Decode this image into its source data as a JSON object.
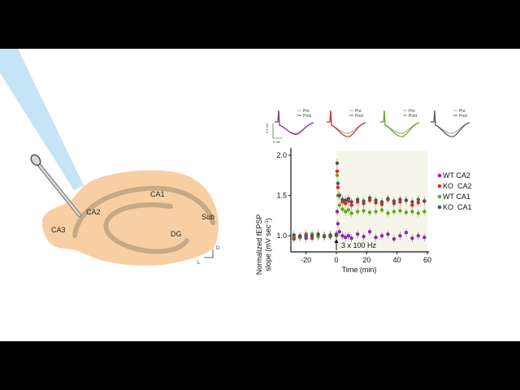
{
  "diagram": {
    "regions": [
      "CA1",
      "CA2",
      "CA3",
      "DG",
      "Sub"
    ],
    "orientation": {
      "dorsal": "D",
      "lateral": "L"
    }
  },
  "traces": {
    "legend_pre": "Pre",
    "legend_post": "Post",
    "scale_y": "0.5 mV",
    "scale_x": "5 ms",
    "panels": [
      {
        "color": "#8b2ba3"
      },
      {
        "color": "#e0261f"
      },
      {
        "color": "#5faa1e"
      },
      {
        "color": "#555555"
      }
    ]
  },
  "chart_data": {
    "type": "scatter",
    "ylabel_line1": "Normalized fEPSP",
    "ylabel_line2": "slope (mV sec",
    "ylabel_sup": "-1",
    "ylabel_close": ")",
    "xlabel": "Time (min)",
    "xlim": [
      -30,
      60
    ],
    "ylim": [
      0.8,
      2.05
    ],
    "x_ticks": [
      -20,
      0,
      20,
      40,
      60
    ],
    "x_tick_labels": [
      "-20",
      "0",
      "20",
      "40",
      "60"
    ],
    "y_ticks": [
      1.0,
      1.5,
      2.0
    ],
    "y_tick_labels": [
      "1.0",
      "1.5",
      "2.0"
    ],
    "annotation": "3 x 100 Hz",
    "annotation_x": 0,
    "shaded_region": [
      0,
      60
    ],
    "series": [
      {
        "name": "WT CA2",
        "color": "#8b2ba3",
        "x": [
          -28,
          -24,
          -20,
          -16,
          -12,
          -8,
          -4,
          0,
          0.5,
          1,
          2,
          4,
          6,
          8,
          10,
          14,
          18,
          22,
          26,
          30,
          34,
          38,
          42,
          46,
          50,
          54,
          58
        ],
        "y": [
          0.96,
          0.98,
          0.97,
          1.0,
          0.99,
          1.0,
          1.01,
          1.02,
          1.3,
          1.15,
          1.05,
          1.0,
          0.98,
          1.0,
          0.97,
          1.02,
          0.99,
          1.05,
          0.98,
          1.0,
          1.02,
          0.96,
          1.0,
          1.04,
          0.97,
          1.0,
          0.98
        ]
      },
      {
        "name": "KO  CA2",
        "color": "#e0261f",
        "x": [
          -28,
          -24,
          -20,
          -16,
          -12,
          -8,
          -4,
          0,
          0.5,
          1,
          2,
          4,
          6,
          8,
          10,
          14,
          18,
          22,
          26,
          30,
          34,
          38,
          42,
          46,
          50,
          54,
          58
        ],
        "y": [
          0.98,
          1.0,
          1.02,
          0.97,
          1.01,
          1.0,
          0.99,
          1.01,
          1.8,
          1.6,
          1.5,
          1.42,
          1.4,
          1.43,
          1.38,
          1.42,
          1.4,
          1.44,
          1.41,
          1.39,
          1.45,
          1.4,
          1.42,
          1.44,
          1.38,
          1.41,
          1.43
        ]
      },
      {
        "name": "WT CA1",
        "color": "#5faa1e",
        "x": [
          -28,
          -24,
          -20,
          -16,
          -12,
          -8,
          -4,
          0,
          0.5,
          1,
          2,
          4,
          6,
          8,
          10,
          14,
          18,
          22,
          26,
          30,
          34,
          38,
          42,
          46,
          50,
          54,
          58
        ],
        "y": [
          1.0,
          0.98,
          1.01,
          1.02,
          0.99,
          1.0,
          1.01,
          1.0,
          1.75,
          1.5,
          1.38,
          1.33,
          1.3,
          1.32,
          1.28,
          1.3,
          1.31,
          1.29,
          1.3,
          1.32,
          1.28,
          1.3,
          1.31,
          1.29,
          1.3,
          1.28,
          1.3
        ]
      },
      {
        "name": "KO  CA1",
        "color": "#555555",
        "x": [
          -28,
          -24,
          -20,
          -16,
          -12,
          -8,
          -4,
          0,
          0.5,
          1,
          2,
          4,
          6,
          8,
          10,
          14,
          18,
          22,
          26,
          30,
          34,
          38,
          42,
          46,
          50,
          54,
          58
        ],
        "y": [
          1.01,
          0.99,
          1.0,
          1.0,
          1.02,
          0.99,
          1.0,
          1.01,
          1.9,
          1.65,
          1.5,
          1.45,
          1.44,
          1.46,
          1.42,
          1.45,
          1.43,
          1.47,
          1.44,
          1.42,
          1.46,
          1.43,
          1.45,
          1.44,
          1.42,
          1.45,
          1.43
        ]
      }
    ]
  }
}
